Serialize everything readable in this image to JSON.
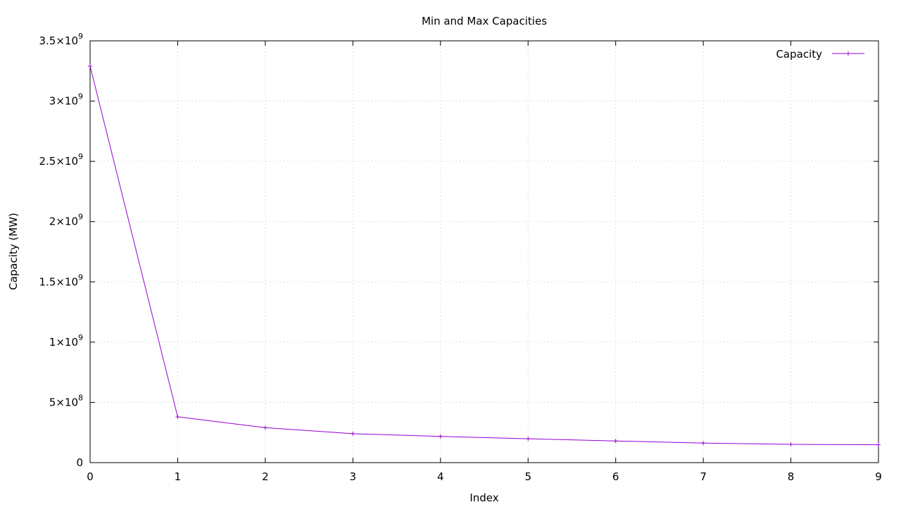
{
  "chart_data": {
    "type": "line",
    "title": "Min and Max Capacities",
    "xlabel": "Index",
    "ylabel": "Capacity (MW)",
    "xlim": [
      0,
      9
    ],
    "ylim": [
      0,
      3500000000
    ],
    "x_ticks": [
      0,
      1,
      2,
      3,
      4,
      5,
      6,
      7,
      8,
      9
    ],
    "y_ticks": [
      {
        "value": 0,
        "mantissa": "0",
        "exponent": ""
      },
      {
        "value": 500000000,
        "mantissa": "5×10",
        "exponent": "8"
      },
      {
        "value": 1000000000,
        "mantissa": "1×10",
        "exponent": "9"
      },
      {
        "value": 1500000000,
        "mantissa": "1.5×10",
        "exponent": "9"
      },
      {
        "value": 2000000000,
        "mantissa": "2×10",
        "exponent": "9"
      },
      {
        "value": 2500000000,
        "mantissa": "2.5×10",
        "exponent": "9"
      },
      {
        "value": 3000000000,
        "mantissa": "3×10",
        "exponent": "9"
      },
      {
        "value": 3500000000,
        "mantissa": "3.5×10",
        "exponent": "9"
      }
    ],
    "grid": true,
    "legend_position": "top-right",
    "series": [
      {
        "name": "Capacity",
        "color": "#9400d3",
        "x": [
          0,
          1,
          2,
          3,
          4,
          5,
          6,
          7,
          8,
          9
        ],
        "values": [
          3290000000,
          380000000,
          290000000,
          240000000,
          218000000,
          198000000,
          180000000,
          162000000,
          152000000,
          148000000
        ]
      }
    ]
  }
}
